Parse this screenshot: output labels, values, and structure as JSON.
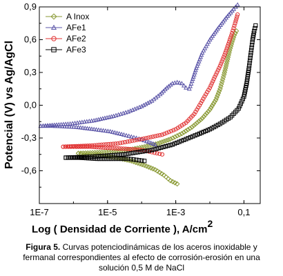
{
  "caption": {
    "label": "Figura 5.",
    "text": "Curvas potenciodinámicas de los aceros inoxidable y fermanal correspondientes al efecto de corrosión-erosión en una solución 0,5 M de NaCl"
  },
  "chart_data": {
    "type": "scatter",
    "xlabel_main": "Log ( Densidad de Corriente ), A/cm",
    "xlabel_sup": "2",
    "ylabel": "Potencial (V) vs Ag/AgCl",
    "xscale": "log",
    "xlim": [
      1e-07,
      0.3
    ],
    "ylim": [
      -0.9,
      0.9
    ],
    "xticks": [
      1e-07,
      1e-05,
      0.001,
      0.1
    ],
    "xtick_labels": [
      "1E-7",
      "1E-5",
      "1E-3",
      "0,1"
    ],
    "yticks": [
      -0.6,
      -0.3,
      0.0,
      0.3,
      0.6,
      0.9
    ],
    "ytick_labels": [
      "-0,6",
      "-0,3",
      "0,0",
      "0,3",
      "0,6",
      "0,9"
    ],
    "legend_position": "top-left",
    "series": [
      {
        "name": "A Inox",
        "color": "#8a9a35",
        "marker": "diamond",
        "cathodic": [
          [
            0.0011,
            -0.72
          ],
          [
            0.0007,
            -0.69
          ],
          [
            0.00045,
            -0.64
          ],
          [
            0.00025,
            -0.59
          ],
          [
            0.00012,
            -0.55
          ],
          [
            5e-05,
            -0.51
          ],
          [
            1.8e-05,
            -0.48
          ],
          [
            6e-06,
            -0.46
          ],
          [
            2.5e-06,
            -0.45
          ],
          [
            1.4e-06,
            -0.44
          ]
        ],
        "anodic": [
          [
            1.4e-06,
            -0.44
          ],
          [
            8e-06,
            -0.43
          ],
          [
            4e-05,
            -0.41
          ],
          [
            0.00012,
            -0.38
          ],
          [
            0.0003,
            -0.35
          ],
          [
            0.0007,
            -0.31
          ],
          [
            0.0015,
            -0.26
          ],
          [
            0.003,
            -0.2
          ],
          [
            0.006,
            -0.12
          ],
          [
            0.01,
            -0.04
          ],
          [
            0.015,
            0.05
          ],
          [
            0.02,
            0.15
          ],
          [
            0.026,
            0.28
          ],
          [
            0.032,
            0.4
          ],
          [
            0.038,
            0.5
          ],
          [
            0.045,
            0.58
          ],
          [
            0.052,
            0.64
          ],
          [
            0.06,
            0.68
          ]
        ]
      },
      {
        "name": "AFe1",
        "color": "#5b55a8",
        "marker": "triangle",
        "cathodic": [
          [
            0.00025,
            -0.36
          ],
          [
            0.00014,
            -0.33
          ],
          [
            7e-05,
            -0.3
          ],
          [
            3e-05,
            -0.27
          ],
          [
            1.2e-05,
            -0.24
          ],
          [
            4e-06,
            -0.22
          ],
          [
            1.2e-06,
            -0.2
          ],
          [
            2.5e-07,
            -0.19
          ],
          [
            1.1e-07,
            -0.19
          ]
        ],
        "anodic": [
          [
            1.1e-07,
            -0.19
          ],
          [
            8e-07,
            -0.17
          ],
          [
            4e-06,
            -0.14
          ],
          [
            1.5e-05,
            -0.1
          ],
          [
            4e-05,
            -0.06
          ],
          [
            0.0001,
            -0.01
          ],
          [
            0.0002,
            0.04
          ],
          [
            0.00035,
            0.1
          ],
          [
            0.00055,
            0.16
          ],
          [
            0.0008,
            0.2
          ],
          [
            0.0011,
            0.21
          ],
          [
            0.0015,
            0.2
          ],
          [
            0.002,
            0.16
          ],
          [
            0.0025,
            0.15
          ],
          [
            0.003,
            0.22
          ],
          [
            0.004,
            0.34
          ],
          [
            0.006,
            0.48
          ],
          [
            0.01,
            0.6
          ],
          [
            0.017,
            0.7
          ],
          [
            0.03,
            0.8
          ],
          [
            0.05,
            0.88
          ],
          [
            0.065,
            0.92
          ]
        ]
      },
      {
        "name": "AFe2",
        "color": "#e03030",
        "marker": "circle",
        "cathodic": [
          [
            0.0004,
            -0.45
          ],
          [
            0.0002,
            -0.43
          ],
          [
            0.0001,
            -0.41
          ],
          [
            4e-05,
            -0.4
          ],
          [
            1e-05,
            -0.39
          ],
          [
            3e-06,
            -0.38
          ],
          [
            1.2e-06,
            -0.38
          ],
          [
            5e-07,
            -0.38
          ]
        ],
        "anodic": [
          [
            5e-07,
            -0.38
          ],
          [
            3e-06,
            -0.37
          ],
          [
            2e-05,
            -0.35
          ],
          [
            0.0001,
            -0.31
          ],
          [
            0.0004,
            -0.27
          ],
          [
            0.001,
            -0.22
          ],
          [
            0.002,
            -0.16
          ],
          [
            0.0035,
            -0.08
          ],
          [
            0.005,
            0.0
          ],
          [
            0.007,
            0.08
          ],
          [
            0.01,
            0.16
          ],
          [
            0.014,
            0.26
          ],
          [
            0.02,
            0.36
          ],
          [
            0.027,
            0.46
          ],
          [
            0.035,
            0.56
          ],
          [
            0.045,
            0.66
          ],
          [
            0.055,
            0.75
          ],
          [
            0.065,
            0.83
          ]
        ]
      },
      {
        "name": "AFe3",
        "color": "#000000",
        "marker": "square",
        "cathodic": [
          [
            0.00012,
            -0.51
          ],
          [
            7e-05,
            -0.5
          ],
          [
            4e-05,
            -0.49
          ],
          [
            1.5e-05,
            -0.49
          ],
          [
            5e-06,
            -0.49
          ],
          [
            1.5e-06,
            -0.48
          ],
          [
            6e-07,
            -0.48
          ]
        ],
        "anodic": [
          [
            6e-07,
            -0.48
          ],
          [
            4e-06,
            -0.47
          ],
          [
            3e-05,
            -0.45
          ],
          [
            0.0002,
            -0.41
          ],
          [
            0.0008,
            -0.36
          ],
          [
            0.002,
            -0.31
          ],
          [
            0.005,
            -0.26
          ],
          [
            0.01,
            -0.22
          ],
          [
            0.02,
            -0.17
          ],
          [
            0.04,
            -0.11
          ],
          [
            0.07,
            -0.03
          ],
          [
            0.1,
            0.08
          ],
          [
            0.12,
            0.2
          ],
          [
            0.14,
            0.34
          ],
          [
            0.16,
            0.48
          ],
          [
            0.18,
            0.6
          ],
          [
            0.2,
            0.68
          ],
          [
            0.22,
            0.73
          ]
        ]
      }
    ]
  }
}
